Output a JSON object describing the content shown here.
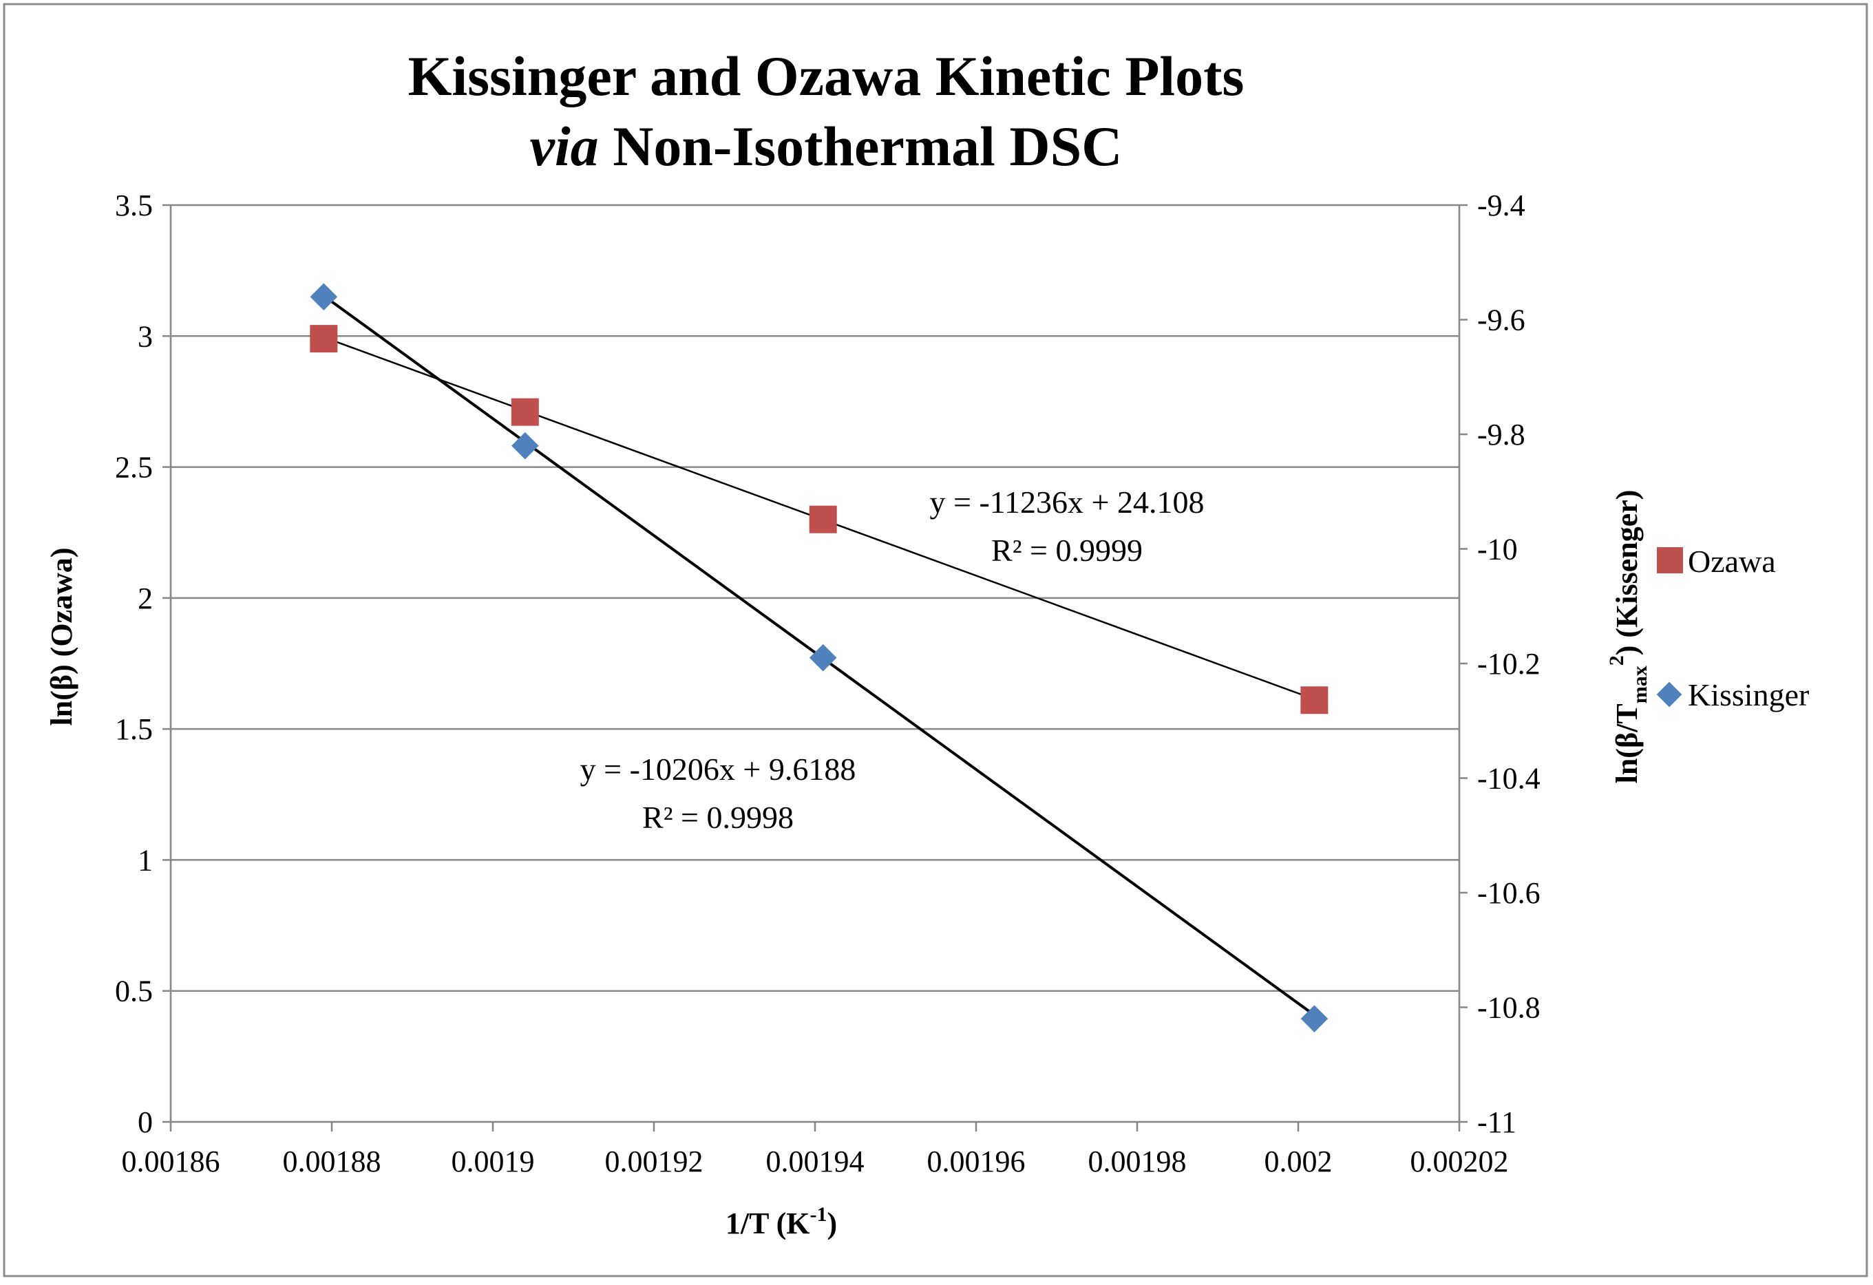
{
  "chart_data": {
    "type": "scatter",
    "title": {
      "line1": "Kissinger and Ozawa Kinetic Plots",
      "line2_italic": "via",
      "line2_rest": " Non-Isothermal DSC"
    },
    "xlabel": {
      "main": "1/T (K",
      "sup": "-1",
      "close": ")"
    },
    "ylabel_left": "ln(β) (Ozawa)",
    "ylabel_right": {
      "pre": "ln(β/T",
      "sub": "max",
      "sup": "2",
      "post": ") (Kissenger)"
    },
    "xlim": [
      0.00186,
      0.00202
    ],
    "ylim_left": [
      0,
      3.5
    ],
    "ylim_right": [
      -11,
      -9.4
    ],
    "x_ticks": [
      "0.00186",
      "0.00188",
      "0.0019",
      "0.00192",
      "0.00194",
      "0.00196",
      "0.00198",
      "0.002",
      "0.00202"
    ],
    "y_ticks_left": [
      "0",
      "0.5",
      "1",
      "1.5",
      "2",
      "2.5",
      "3",
      "3.5"
    ],
    "y_ticks_right": [
      "-11",
      "-10.8",
      "-10.6",
      "-10.4",
      "-10.2",
      "-10",
      "-9.8",
      "-9.6",
      "-9.4"
    ],
    "grid": "horizontal",
    "legend_position": "right",
    "series": [
      {
        "name": "Ozawa",
        "axis": "left",
        "marker": "square",
        "color": "#c0504d",
        "x": [
          0.001879,
          0.001904,
          0.001941,
          0.002002
        ],
        "y": [
          2.99,
          2.71,
          2.3,
          1.61
        ],
        "trendline": {
          "slope": -11236,
          "intercept": 24.108
        },
        "equation": "y = -11236x + 24.108",
        "r2": "R² = 0.9999"
      },
      {
        "name": "Kissinger",
        "axis": "right",
        "marker": "diamond",
        "color": "#4f81bd",
        "x": [
          0.001879,
          0.001904,
          0.001941,
          0.002002
        ],
        "y": [
          -9.56,
          -9.82,
          -10.19,
          -10.82
        ],
        "trendline": {
          "slope": -10206,
          "intercept": 9.6188
        },
        "equation": "y = -10206x + 9.6188",
        "r2": "R² = 0.9998"
      }
    ]
  }
}
